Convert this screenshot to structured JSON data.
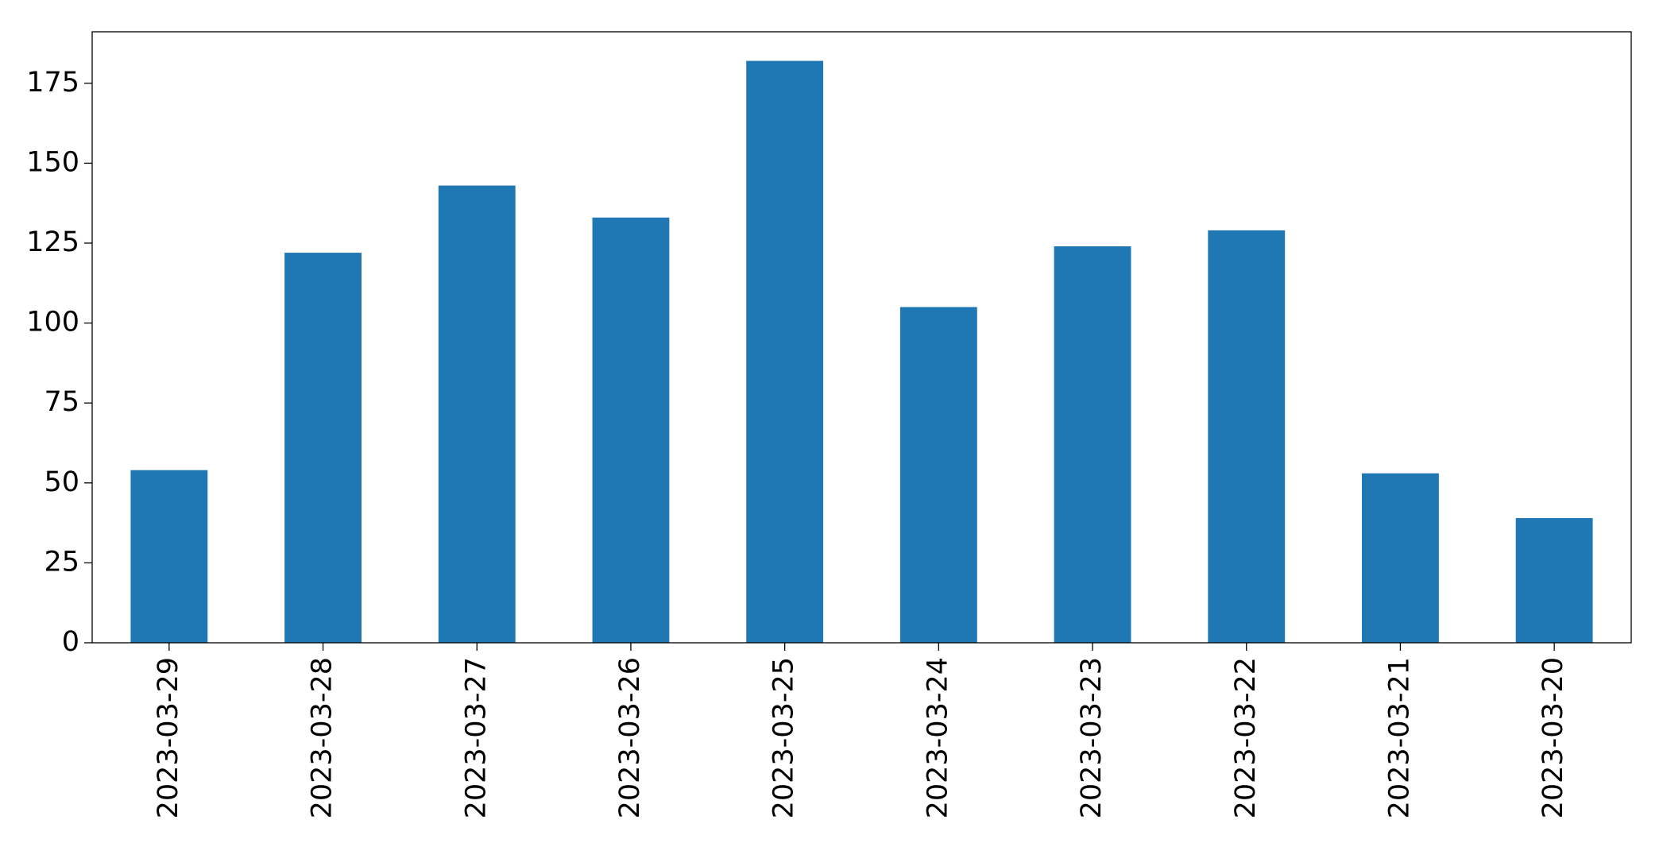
{
  "chart_data": {
    "type": "bar",
    "categories": [
      "2023-03-29",
      "2023-03-28",
      "2023-03-27",
      "2023-03-26",
      "2023-03-25",
      "2023-03-24",
      "2023-03-23",
      "2023-03-22",
      "2023-03-21",
      "2023-03-20"
    ],
    "values": [
      54,
      122,
      143,
      133,
      182,
      105,
      124,
      129,
      53,
      39
    ],
    "color": "#1f77b4",
    "ylim": [
      0,
      191.1
    ],
    "yticks": [
      0,
      25,
      50,
      75,
      100,
      125,
      150,
      175
    ],
    "grid": false
  }
}
